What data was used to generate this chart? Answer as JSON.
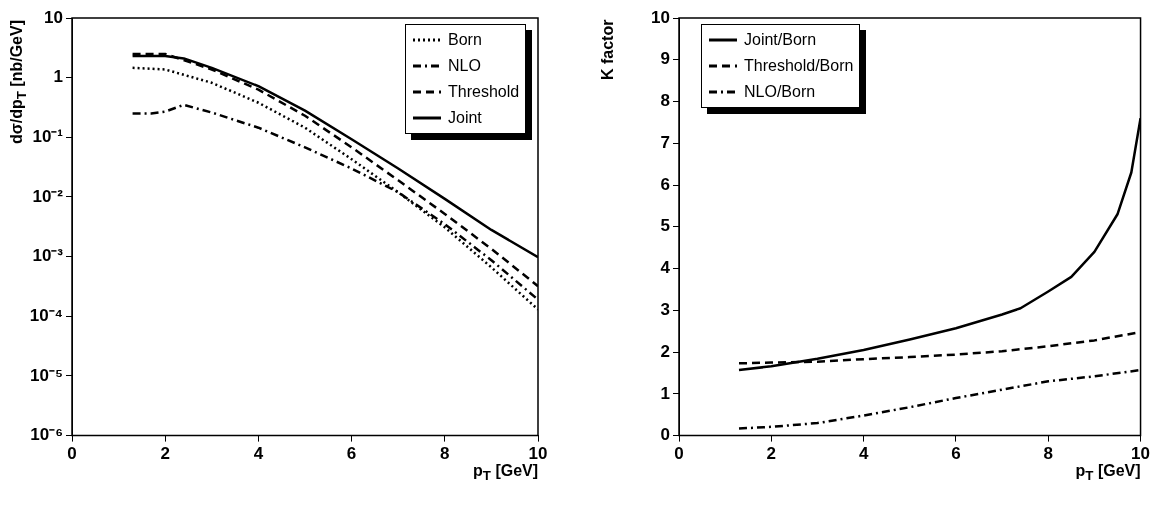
{
  "chart_data": [
    {
      "type": "line",
      "xlabel": "p$_{T}$ [GeV]",
      "ylabel": "dσ/dp$_{T}$ [nb/GeV]",
      "log": "y",
      "grid": false,
      "legend": "top right",
      "xlim": [
        0,
        10
      ],
      "xticks": [
        0,
        2,
        4,
        6,
        8,
        10
      ],
      "ylim": [
        1e-06,
        10
      ],
      "yticks": [
        {
          "value": 1e-06,
          "label": "10⁻⁶"
        },
        {
          "value": 1e-05,
          "label": "10⁻⁵"
        },
        {
          "value": 0.0001,
          "label": "10⁻⁴"
        },
        {
          "value": 0.001,
          "label": "10⁻³"
        },
        {
          "value": 0.01,
          "label": "10⁻²"
        },
        {
          "value": 0.1,
          "label": "10⁻¹"
        },
        1,
        10
      ],
      "series": [
        {
          "name": "Born",
          "color": "#000000",
          "line_style": "dotted",
          "x": [
            1.3,
            2,
            3,
            4,
            5,
            6,
            7,
            8,
            9,
            10
          ],
          "values": [
            1.46,
            1.37,
            0.82,
            0.38,
            0.145,
            0.043,
            0.012,
            0.0031,
            0.00066,
            0.00013
          ]
        },
        {
          "name": "NLO",
          "color": "#000000",
          "line_style": "dashdot",
          "x": [
            1.3,
            1.7,
            2,
            2.4,
            3,
            4,
            5,
            6,
            7,
            8,
            9,
            10
          ],
          "values": [
            0.25,
            0.25,
            0.27,
            0.35,
            0.26,
            0.145,
            0.068,
            0.03,
            0.012,
            0.0035,
            0.00087,
            0.00019
          ]
        },
        {
          "name": "Threshold",
          "color": "#000000",
          "line_style": "dashed",
          "x": [
            1.3,
            2,
            3,
            4,
            5,
            6,
            7,
            8,
            9,
            10
          ],
          "values": [
            2.5,
            2.5,
            1.37,
            0.63,
            0.23,
            0.068,
            0.019,
            0.0052,
            0.00135,
            0.00032
          ]
        },
        {
          "name": "Joint",
          "color": "#000000",
          "line_style": "solid",
          "x": [
            1.3,
            2,
            2.4,
            3,
            4,
            5,
            6,
            7,
            8,
            9,
            10
          ],
          "values": [
            2.3,
            2.3,
            2.1,
            1.46,
            0.72,
            0.28,
            0.093,
            0.03,
            0.0093,
            0.0028,
            0.00098
          ]
        }
      ]
    },
    {
      "type": "line",
      "xlabel": "p$_{T}$ [GeV]",
      "ylabel": "K factor",
      "grid": false,
      "legend": "top left",
      "xlim": [
        0,
        10
      ],
      "xticks": [
        0,
        2,
        4,
        6,
        8,
        10
      ],
      "ylim": [
        0,
        10
      ],
      "yticks": [
        0,
        1,
        2,
        3,
        4,
        5,
        6,
        7,
        8,
        9,
        10
      ],
      "series": [
        {
          "name": "Joint/Born",
          "color": "#000000",
          "line_style": "solid",
          "x": [
            1.3,
            2,
            3,
            4,
            5,
            6,
            7,
            7.4,
            8,
            8.5,
            9,
            9.5,
            9.8,
            10
          ],
          "values": [
            1.57,
            1.66,
            1.84,
            2.05,
            2.3,
            2.57,
            2.9,
            3.05,
            3.45,
            3.8,
            4.4,
            5.3,
            6.3,
            7.6
          ]
        },
        {
          "name": "Threshold/Born",
          "color": "#000000",
          "line_style": "dashed",
          "x": [
            1.3,
            2,
            3,
            4,
            5,
            6,
            7,
            8,
            9,
            10
          ],
          "values": [
            1.73,
            1.75,
            1.77,
            1.83,
            1.88,
            1.94,
            2.02,
            2.14,
            2.28,
            2.48
          ]
        },
        {
          "name": "NLO/Born",
          "color": "#000000",
          "line_style": "dashdot",
          "x": [
            1.3,
            2,
            3,
            4,
            5,
            6,
            7,
            8,
            9,
            10
          ],
          "values": [
            0.17,
            0.21,
            0.3,
            0.48,
            0.68,
            0.9,
            1.1,
            1.3,
            1.42,
            1.57
          ]
        }
      ]
    }
  ]
}
